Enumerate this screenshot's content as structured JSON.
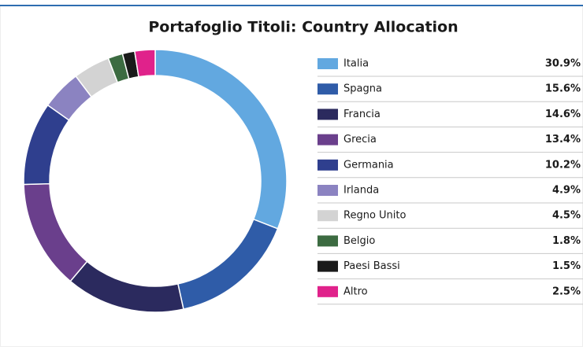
{
  "chart_data": {
    "type": "donut",
    "title": "Portafoglio Titoli: Country Allocation",
    "categories": [
      "Italia",
      "Spagna",
      "Francia",
      "Grecia",
      "Germania",
      "Irlanda",
      "Regno Unito",
      "Belgio",
      "Paesi Bassi",
      "Altro"
    ],
    "values": [
      30.9,
      15.6,
      14.6,
      13.4,
      10.2,
      4.9,
      4.5,
      1.8,
      1.5,
      2.5
    ],
    "value_labels": [
      "30.9%",
      "15.6%",
      "14.6%",
      "13.4%",
      "10.2%",
      "4.9%",
      "4.5%",
      "1.8%",
      "1.5%",
      "2.5%"
    ],
    "colors": [
      "#62a8e0",
      "#2f5ca8",
      "#2b2a5e",
      "#6a3f8c",
      "#2f3f8e",
      "#8b83c1",
      "#d3d3d3",
      "#3c6b41",
      "#1a1a1a",
      "#e0228b"
    ]
  }
}
